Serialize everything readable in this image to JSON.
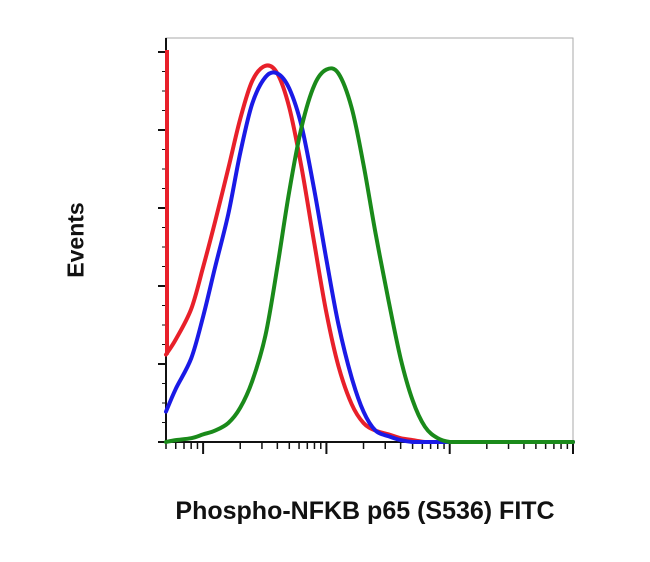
{
  "chart_data": {
    "type": "line",
    "title": "",
    "xlabel": "Phospho-NFKB p65 (S536) FITC",
    "ylabel": "Events",
    "x_scale": "log",
    "xlim": [
      0.5,
      1000
    ],
    "ylim": [
      0,
      100
    ],
    "grid": false,
    "legend": "none",
    "x": [
      0.5,
      0.6,
      0.8,
      1,
      1.25,
      1.6,
      2,
      2.5,
      3.2,
      4,
      5,
      6.3,
      8,
      10,
      12.5,
      16,
      20,
      25,
      32,
      40,
      50,
      63,
      80,
      100,
      125,
      160,
      200,
      250,
      320,
      400,
      500,
      1000
    ],
    "series": [
      {
        "name": "",
        "color": "#e8202a",
        "values": [
          23,
          27,
          35,
          46,
          58,
          72,
          85,
          95,
          99,
          97,
          88,
          72,
          52,
          34,
          20,
          10,
          5,
          3,
          2,
          1,
          0.5,
          0,
          0,
          0,
          0,
          0,
          0,
          0,
          0,
          0,
          0,
          0
        ]
      },
      {
        "name": "",
        "color": "#1a1ae6",
        "values": [
          8,
          14,
          22,
          33,
          46,
          60,
          76,
          89,
          96,
          97,
          93,
          83,
          66,
          48,
          31,
          17,
          8,
          3,
          1.5,
          0.5,
          0,
          0,
          0,
          0,
          0,
          0,
          0,
          0,
          0,
          0,
          0,
          0
        ]
      },
      {
        "name": "",
        "color": "#1a8a1a",
        "values": [
          0,
          0.5,
          1,
          2,
          3,
          5,
          9,
          16,
          28,
          46,
          66,
          83,
          94,
          98,
          97,
          88,
          73,
          55,
          37,
          22,
          11,
          4,
          1,
          0,
          0,
          0,
          0,
          0,
          0,
          0,
          0,
          0
        ]
      }
    ]
  }
}
